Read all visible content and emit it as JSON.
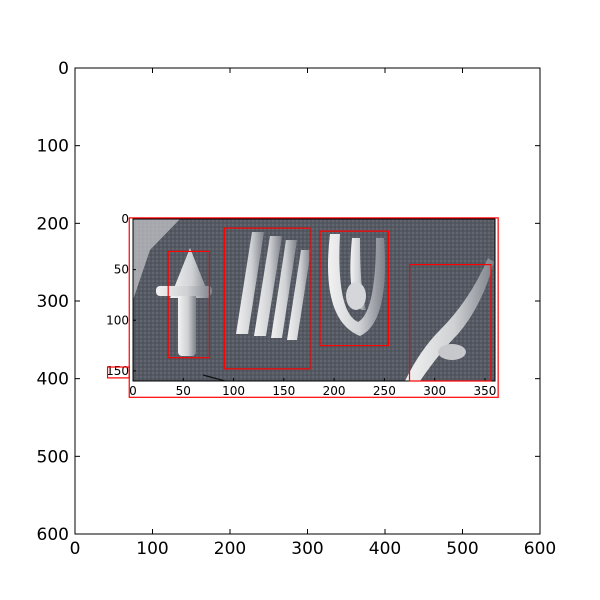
{
  "chart_data": [
    {
      "type": "image",
      "description_role": "outer figure axes in pixel coordinates",
      "xlim": [
        0,
        600
      ],
      "ylim": [
        600,
        0
      ],
      "x_ticks": [
        0,
        100,
        200,
        300,
        400,
        500,
        600
      ],
      "y_ticks": [
        0,
        100,
        200,
        300,
        400,
        500,
        600
      ],
      "grid": false,
      "boxes": [
        {
          "name": "inset-frame",
          "x0": 70,
          "y0": 193,
          "x1": 546,
          "y1": 424,
          "color": "#ff0000"
        },
        {
          "name": "small-box",
          "x0": 42,
          "y0": 385,
          "x1": 70,
          "y1": 399,
          "color": "#ff0000"
        }
      ]
    },
    {
      "type": "image",
      "description_role": "inset image axes",
      "xlim": [
        0,
        360
      ],
      "ylim": [
        160,
        0
      ],
      "x_ticks": [
        0,
        50,
        100,
        150,
        200,
        250,
        300,
        350
      ],
      "y_ticks": [
        0,
        50,
        100,
        150
      ],
      "grid": false,
      "boxes": [
        {
          "name": "glyph-1-box",
          "x0": 35,
          "y0": 32,
          "x1": 76,
          "y1": 137,
          "color": "#ff0000"
        },
        {
          "name": "glyph-2-box",
          "x0": 91,
          "y0": 9,
          "x1": 176,
          "y1": 148,
          "color": "#ff0000"
        },
        {
          "name": "glyph-3-box",
          "x0": 186,
          "y0": 12,
          "x1": 254,
          "y1": 125,
          "color": "#ff0000"
        },
        {
          "name": "glyph-4-box",
          "x0": 275,
          "y0": 45,
          "x1": 356,
          "y1": 164,
          "color": "#ff0000"
        }
      ]
    }
  ],
  "colors": {
    "box": "#ff0000",
    "axis": "#000000",
    "stone_dark": "#3c4048",
    "stone_light": "#e8e8e8"
  }
}
